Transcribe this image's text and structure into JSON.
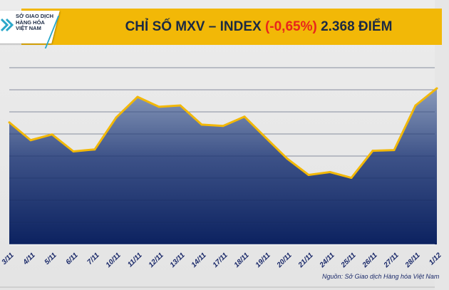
{
  "header": {
    "logo_text": [
      "SỞ GIAO DỊCH",
      "HÀNG HÓA",
      "VIỆT NAM"
    ],
    "title_prefix": "CHỈ SỐ MXV – INDEX ",
    "title_change": "(-0,65%)",
    "title_suffix": " 2.368 ĐIỂM"
  },
  "colors": {
    "title_bar": "#f2b807",
    "change_negative": "#e8261c",
    "line": "#f2b807",
    "area_top": "#8a9bbb",
    "area_bottom": "#0c2260",
    "axis_label": "#1b2a6a"
  },
  "chart_data": {
    "type": "area",
    "categories": [
      "3/11",
      "4/11",
      "5/11",
      "6/11",
      "7/11",
      "10/11",
      "11/11",
      "12/11",
      "13/11",
      "14/11",
      "17/11",
      "18/11",
      "19/11",
      "20/11",
      "21/11",
      "24/11",
      "25/11",
      "26/11",
      "27/11",
      "28/11",
      "1/12"
    ],
    "values": [
      5.55,
      4.74,
      5.0,
      4.23,
      4.32,
      5.77,
      6.71,
      6.26,
      6.32,
      5.45,
      5.39,
      5.81,
      4.85,
      3.9,
      3.16,
      3.29,
      3.03,
      4.26,
      4.29,
      6.32,
      7.1
    ],
    "ylim": [
      0,
      8.2
    ],
    "grid": true,
    "y_tick_labels_visible": false
  },
  "footer": {
    "source": "Nguồn: Sở Giao dịch Hàng hóa Việt Nam"
  }
}
